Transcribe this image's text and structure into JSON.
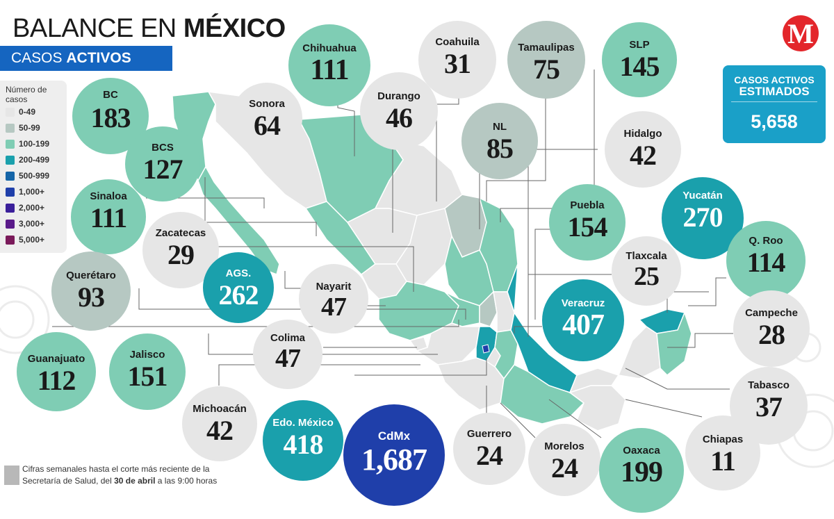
{
  "header": {
    "title_light": "BALANCE EN ",
    "title_bold": "MÉXICO",
    "sub_light": "CASOS ",
    "sub_bold": "ACTIVOS",
    "logo": "M"
  },
  "legend": {
    "title": "Número de casos",
    "items": [
      {
        "label": "0-49",
        "color": "#e6e6e6"
      },
      {
        "label": "50-99",
        "color": "#b6c8c2"
      },
      {
        "label": "100-199",
        "color": "#7fcdb4"
      },
      {
        "label": "200-499",
        "color": "#1aa0ac"
      },
      {
        "label": "500-999",
        "color": "#1565a8"
      },
      {
        "label": "1,000+",
        "color": "#1f3faa"
      },
      {
        "label": "2,000+",
        "color": "#3a1f9a"
      },
      {
        "label": "3,000+",
        "color": "#5a1a8a"
      },
      {
        "label": "5,000+",
        "color": "#7a1a5a"
      }
    ]
  },
  "estimados": {
    "line1": "CASOS ACTIVOS",
    "line2": "ESTIMADOS",
    "value": "5,658"
  },
  "states": [
    {
      "id": "bc",
      "name": "BC",
      "value": "183"
    },
    {
      "id": "sonora",
      "name": "Sonora",
      "value": "64"
    },
    {
      "id": "chihuahua",
      "name": "Chihuahua",
      "value": "111"
    },
    {
      "id": "coahuila",
      "name": "Coahuila",
      "value": "31"
    },
    {
      "id": "tamaulipas",
      "name": "Tamaulipas",
      "value": "75"
    },
    {
      "id": "slp",
      "name": "SLP",
      "value": "145"
    },
    {
      "id": "bcs",
      "name": "BCS",
      "value": "127"
    },
    {
      "id": "durango",
      "name": "Durango",
      "value": "46"
    },
    {
      "id": "nl",
      "name": "NL",
      "value": "85"
    },
    {
      "id": "hidalgo",
      "name": "Hidalgo",
      "value": "42"
    },
    {
      "id": "sinaloa",
      "name": "Sinaloa",
      "value": "111"
    },
    {
      "id": "zacatecas",
      "name": "Zacatecas",
      "value": "29"
    },
    {
      "id": "puebla",
      "name": "Puebla",
      "value": "154"
    },
    {
      "id": "yucatan",
      "name": "Yucatán",
      "value": "270"
    },
    {
      "id": "queretaro",
      "name": "Querétaro",
      "value": "93"
    },
    {
      "id": "ags",
      "name": "AGS.",
      "value": "262"
    },
    {
      "id": "nayarit",
      "name": "Nayarit",
      "value": "47"
    },
    {
      "id": "tlaxcala",
      "name": "Tlaxcala",
      "value": "25"
    },
    {
      "id": "qroo",
      "name": "Q. Roo",
      "value": "114"
    },
    {
      "id": "veracruz",
      "name": "Veracruz",
      "value": "407"
    },
    {
      "id": "campeche",
      "name": "Campeche",
      "value": "28"
    },
    {
      "id": "colima",
      "name": "Colima",
      "value": "47"
    },
    {
      "id": "guanajuato",
      "name": "Guanajuato",
      "value": "112"
    },
    {
      "id": "jalisco",
      "name": "Jalisco",
      "value": "151"
    },
    {
      "id": "tabasco",
      "name": "Tabasco",
      "value": "37"
    },
    {
      "id": "michoacan",
      "name": "Michoacán",
      "value": "42"
    },
    {
      "id": "edomex",
      "name": "Edo. México",
      "value": "418"
    },
    {
      "id": "cdmx",
      "name": "CdMx",
      "value": "1,687"
    },
    {
      "id": "guerrero",
      "name": "Guerrero",
      "value": "24"
    },
    {
      "id": "morelos",
      "name": "Morelos",
      "value": "24"
    },
    {
      "id": "oaxaca",
      "name": "Oaxaca",
      "value": "199"
    },
    {
      "id": "chiapas",
      "name": "Chiapas",
      "value": "11"
    }
  ],
  "footnote": {
    "pre": "Cifras semanales hasta el corte más reciente de la Secretaría de Salud, del ",
    "bold": "30 de abril",
    "post": " a las 9:00 horas"
  }
}
